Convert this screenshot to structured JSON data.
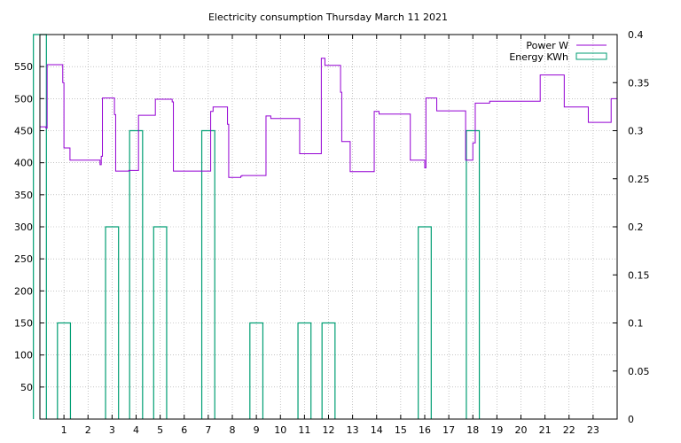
{
  "chart_data": {
    "type": "line",
    "title": "Electricity consumption Thursday March 11 2021",
    "x_ticks": [
      "1",
      "2",
      "3",
      "4",
      "5",
      "6",
      "7",
      "8",
      "9",
      "10",
      "11",
      "12",
      "13",
      "14",
      "15",
      "16",
      "17",
      "18",
      "19",
      "20",
      "21",
      "22",
      "23"
    ],
    "x_range": [
      0,
      24
    ],
    "y_left_range": [
      0,
      600
    ],
    "y_left_ticks": [
      "50",
      "100",
      "150",
      "200",
      "250",
      "300",
      "350",
      "400",
      "450",
      "500",
      "550"
    ],
    "y_right_range": [
      0,
      0.4
    ],
    "y_right_ticks": [
      "0",
      "0.05",
      "0.1",
      "0.15",
      "0.2",
      "0.25",
      "0.3",
      "0.35",
      "0.4"
    ],
    "grid": true,
    "legend_position": "top-right",
    "colors": {
      "power": "#9400d3",
      "energy": "#009e73",
      "grid": "#a0a0a0",
      "axis": "#000000"
    },
    "series": [
      {
        "name": "Power W",
        "axis": "left",
        "style": "steps",
        "points": [
          [
            0.0,
            456
          ],
          [
            0.25,
            454
          ],
          [
            0.3,
            553
          ],
          [
            0.95,
            525
          ],
          [
            1.0,
            423
          ],
          [
            1.25,
            404
          ],
          [
            2.5,
            397
          ],
          [
            2.55,
            410
          ],
          [
            2.6,
            501
          ],
          [
            3.1,
            475
          ],
          [
            3.15,
            387
          ],
          [
            3.7,
            388
          ],
          [
            4.1,
            474
          ],
          [
            4.8,
            499
          ],
          [
            5.5,
            495
          ],
          [
            5.55,
            387
          ],
          [
            7.1,
            480
          ],
          [
            7.2,
            487
          ],
          [
            7.8,
            460
          ],
          [
            7.85,
            377
          ],
          [
            8.35,
            379
          ],
          [
            8.4,
            380
          ],
          [
            9.4,
            473
          ],
          [
            9.6,
            469
          ],
          [
            10.8,
            414
          ],
          [
            11.7,
            563
          ],
          [
            11.85,
            552
          ],
          [
            12.5,
            510
          ],
          [
            12.55,
            433
          ],
          [
            12.9,
            386
          ],
          [
            13.9,
            480
          ],
          [
            14.1,
            476
          ],
          [
            15.4,
            404
          ],
          [
            16.0,
            392
          ],
          [
            16.05,
            501
          ],
          [
            16.5,
            481
          ],
          [
            17.7,
            404
          ],
          [
            18.0,
            431
          ],
          [
            18.1,
            493
          ],
          [
            18.7,
            496
          ],
          [
            20.8,
            537
          ],
          [
            21.8,
            487
          ],
          [
            22.8,
            463
          ],
          [
            23.75,
            500
          ]
        ]
      },
      {
        "name": "Energy KWh",
        "axis": "right",
        "style": "boxes",
        "values": [
          0.4,
          0.1,
          0,
          0.2,
          0.3,
          0.2,
          0,
          0.3,
          0,
          0.1,
          0,
          0.1,
          0.1,
          0,
          0,
          0,
          0.2,
          0,
          0.3,
          0,
          0,
          0,
          0,
          0
        ]
      }
    ]
  }
}
